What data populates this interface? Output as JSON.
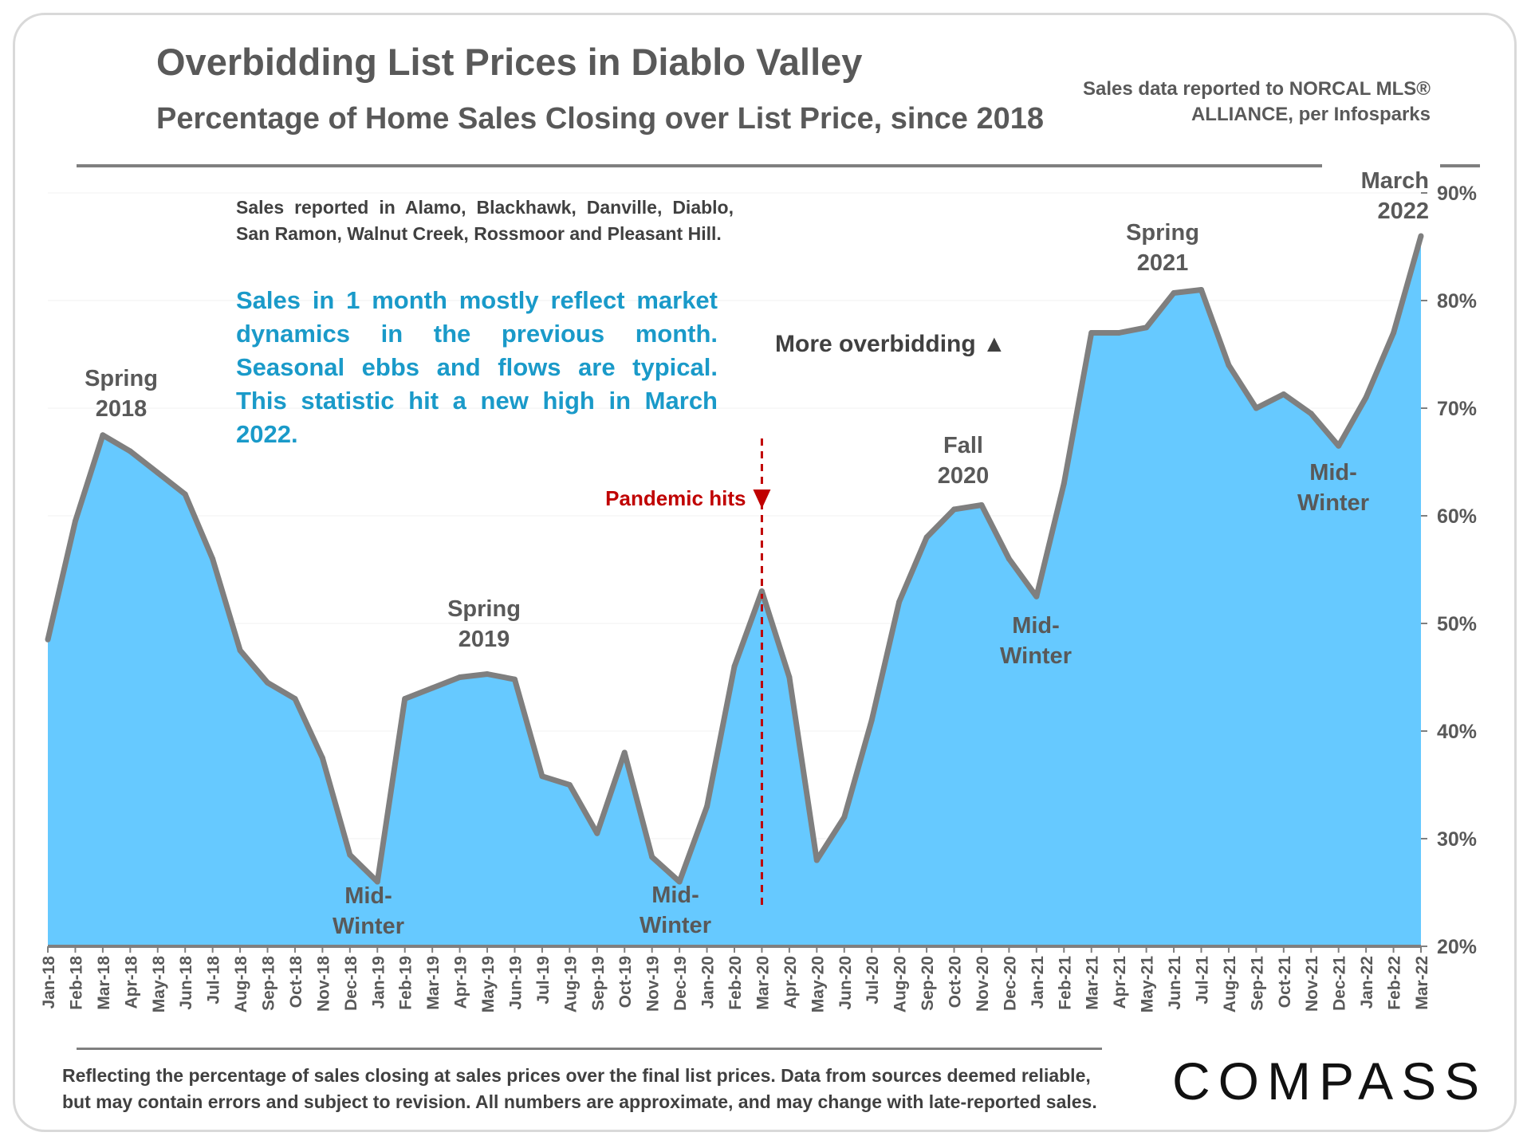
{
  "header": {
    "title": "Overbidding List Prices in Diablo Valley",
    "subtitle": "Percentage of Home Sales Closing over List Price, since 2018",
    "source": "Sales data reported to NORCAL MLS® ALLIANCE, per Infosparks"
  },
  "notes": {
    "areas": "Sales reported in Alamo, Blackhawk, Danville, Diablo, San Ramon, Walnut Creek, Rossmoor and Pleasant Hill.",
    "explanation": "Sales in 1 month mostly reflect market dynamics in the previous month. Seasonal ebbs and flows are typical.  This statistic hit a new high in March 2022."
  },
  "footer": {
    "footnote": "Reflecting the percentage of sales closing at sales prices over the final list prices. Data from sources deemed reliable, but may contain errors and subject to revision. All numbers are approximate, and may change with late-reported sales.",
    "logo": "COMPASS"
  },
  "colors": {
    "area_fill": "#66c9ff",
    "line": "#7f7f7f",
    "pandemic": "#c00000",
    "blurb": "#1a9ac9"
  },
  "chart_data": {
    "type": "area",
    "title": "Percentage of Home Sales Closing over List Price, since 2018",
    "ylabel": "",
    "xlabel": "",
    "ylim": [
      20,
      90
    ],
    "yticks": [
      20,
      30,
      40,
      50,
      60,
      70,
      80,
      90
    ],
    "ytick_labels": [
      "20%",
      "30%",
      "40%",
      "50%",
      "60%",
      "70%",
      "80%",
      "90%"
    ],
    "categories": [
      "Jan-18",
      "Feb-18",
      "Mar-18",
      "Apr-18",
      "May-18",
      "Jun-18",
      "Jul-18",
      "Aug-18",
      "Sep-18",
      "Oct-18",
      "Nov-18",
      "Dec-18",
      "Jan-19",
      "Feb-19",
      "Mar-19",
      "Apr-19",
      "May-19",
      "Jun-19",
      "Jul-19",
      "Aug-19",
      "Sep-19",
      "Oct-19",
      "Nov-19",
      "Dec-19",
      "Jan-20",
      "Feb-20",
      "Mar-20",
      "Apr-20",
      "May-20",
      "Jun-20",
      "Jul-20",
      "Aug-20",
      "Sep-20",
      "Oct-20",
      "Nov-20",
      "Dec-20",
      "Jan-21",
      "Feb-21",
      "Mar-21",
      "Apr-21",
      "May-21",
      "Jun-21",
      "Jul-21",
      "Aug-21",
      "Sep-21",
      "Oct-21",
      "Nov-21",
      "Dec-21",
      "Jan-22",
      "Feb-22",
      "Mar-22"
    ],
    "series": [
      {
        "name": "Percentage of sales closing over list price",
        "values": [
          48.5,
          59.5,
          67.5,
          66,
          64,
          62,
          56,
          47.5,
          44.5,
          43,
          37.5,
          28.5,
          26,
          43,
          44,
          45,
          45.3,
          44.8,
          35.8,
          35,
          30.5,
          38,
          28.3,
          26,
          33,
          46,
          53,
          45,
          28,
          32,
          41,
          52,
          58,
          60.6,
          61,
          56,
          52.5,
          63,
          77,
          77,
          77.5,
          80.7,
          81,
          74,
          70,
          71.3,
          69.5,
          66.5,
          71,
          77,
          86
        ]
      }
    ],
    "annotations": [
      {
        "text": "Spring 2018",
        "line1": "Spring",
        "line2": "2018",
        "x": "Mar-18"
      },
      {
        "text": "Mid-Winter",
        "line1": "Mid-",
        "line2": "Winter",
        "x": "Jan-19"
      },
      {
        "text": "Spring 2019",
        "line1": "Spring",
        "line2": "2019",
        "x": "May-19"
      },
      {
        "text": "Mid-Winter",
        "line1": "Mid-",
        "line2": "Winter",
        "x": "Dec-19"
      },
      {
        "text": "Fall 2020",
        "line1": "Fall",
        "line2": "2020",
        "x": "Nov-20"
      },
      {
        "text": "Mid-Winter",
        "line1": "Mid-",
        "line2": "Winter",
        "x": "Jan-21"
      },
      {
        "text": "Spring 2021",
        "line1": "Spring",
        "line2": "2021",
        "x": "Jul-21"
      },
      {
        "text": "Mid-Winter",
        "line1": "Mid-",
        "line2": "Winter",
        "x": "Dec-21"
      },
      {
        "text": "March 2022",
        "line1": "March",
        "line2": "2022",
        "x": "Mar-22"
      }
    ],
    "pandemic_marker": {
      "label": "Pandemic hits",
      "x": "Mar-20"
    },
    "overbidding_label": "More overbidding ▲"
  }
}
